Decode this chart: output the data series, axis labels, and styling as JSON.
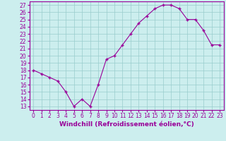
{
  "x": [
    0,
    1,
    2,
    3,
    4,
    5,
    6,
    7,
    8,
    9,
    10,
    11,
    12,
    13,
    14,
    15,
    16,
    17,
    18,
    19,
    20,
    21,
    22,
    23
  ],
  "y": [
    18,
    17.5,
    17,
    16.5,
    15,
    13,
    14,
    13,
    16,
    19.5,
    20,
    21.5,
    23,
    24.5,
    25.5,
    26.5,
    27,
    27,
    26.5,
    25,
    25,
    23.5,
    21.5,
    21.5
  ],
  "line_color": "#990099",
  "marker": "+",
  "marker_size": 3,
  "marker_lw": 1.0,
  "bg_color": "#cceeee",
  "grid_color": "#99cccc",
  "xlabel": "Windchill (Refroidissement éolien,°C)",
  "xlabel_color": "#990099",
  "tick_color": "#990099",
  "ylim": [
    12.5,
    27.5
  ],
  "yticks": [
    13,
    14,
    15,
    16,
    17,
    18,
    19,
    20,
    21,
    22,
    23,
    24,
    25,
    26,
    27
  ],
  "xlim": [
    -0.5,
    23.5
  ],
  "xticks": [
    0,
    1,
    2,
    3,
    4,
    5,
    6,
    7,
    8,
    9,
    10,
    11,
    12,
    13,
    14,
    15,
    16,
    17,
    18,
    19,
    20,
    21,
    22,
    23
  ],
  "tick_fontsize": 5.5,
  "xlabel_fontsize": 6.5,
  "line_width": 0.8
}
